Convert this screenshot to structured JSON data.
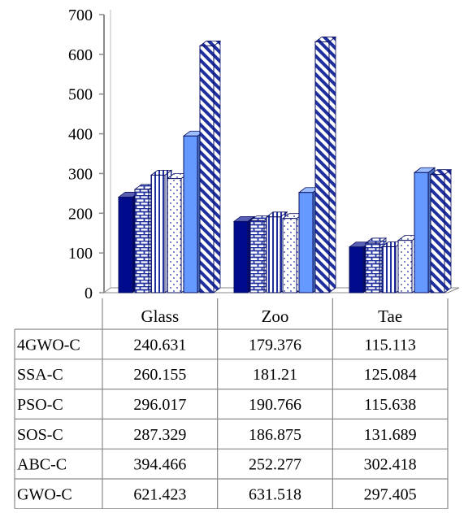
{
  "chart_data": {
    "type": "bar",
    "title": "",
    "xlabel": "",
    "ylabel": "",
    "ylim": [
      0,
      700
    ],
    "yticks": [
      0,
      100,
      200,
      300,
      400,
      500,
      600,
      700
    ],
    "grid": false,
    "legend": "table-below",
    "categories": [
      "Glass",
      "Zoo",
      "Tae"
    ],
    "series": [
      {
        "name": "4GWO-C",
        "values": [
          240.631,
          179.376,
          115.113
        ],
        "color": "#000a8c",
        "pattern": "solid"
      },
      {
        "name": "SSA-C",
        "values": [
          260.155,
          181.21,
          125.084
        ],
        "color": "#1f2f9e",
        "pattern": "brick"
      },
      {
        "name": "PSO-C",
        "values": [
          296.017,
          190.766,
          115.638
        ],
        "color": "#1f2f9e",
        "pattern": "vertical"
      },
      {
        "name": "SOS-C",
        "values": [
          287.329,
          186.875,
          131.689
        ],
        "color": "#1f2f9e",
        "pattern": "dots"
      },
      {
        "name": "ABC-C",
        "values": [
          394.466,
          252.277,
          302.418
        ],
        "color": "#6699ff",
        "pattern": "solid"
      },
      {
        "name": "GWO-C",
        "values": [
          621.423,
          631.518,
          297.405
        ],
        "color": "#1f2f9e",
        "pattern": "diagonal"
      }
    ],
    "table": {
      "rows": [
        [
          "4GWO-C",
          "240.631",
          "179.376",
          "115.113"
        ],
        [
          "SSA-C",
          "260.155",
          "181.21",
          "125.084"
        ],
        [
          "PSO-C",
          "296.017",
          "190.766",
          "115.638"
        ],
        [
          "SOS-C",
          "287.329",
          "186.875",
          "131.689"
        ],
        [
          "ABC-C",
          "394.466",
          "252.277",
          "302.418"
        ],
        [
          "GWO-C",
          "621.423",
          "631.518",
          "297.405"
        ]
      ]
    }
  }
}
